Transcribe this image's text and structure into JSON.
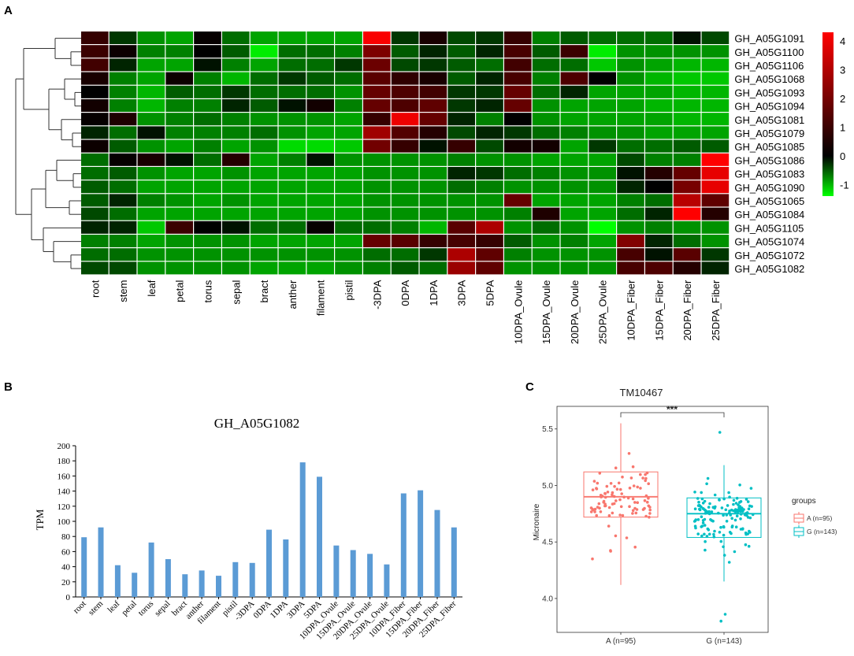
{
  "panels": {
    "a": "A",
    "b": "B",
    "c": "C"
  },
  "chart_data": [
    {
      "type": "heatmap",
      "panel": "A",
      "columns": [
        "root",
        "stem",
        "leaf",
        "petal",
        "torus",
        "sepal",
        "bract",
        "anther",
        "filament",
        "pistil",
        "-3DPA",
        "0DPA",
        "1DPA",
        "3DPA",
        "5DPA",
        "10DPA_Ovule",
        "15DPA_Ovule",
        "20DPA_Ovule",
        "25DPA_Ovule",
        "10DPA_Fiber",
        "15DPA_Fiber",
        "20DPA_Fiber",
        "25DPA_Fiber"
      ],
      "rows": [
        "GH_A05G1091",
        "GH_A05G1100",
        "GH_A05G1106",
        "GH_A05G1068",
        "GH_A05G1093",
        "GH_A05G1094",
        "GH_A05G1081",
        "GH_A05G1079",
        "GH_A05G1085",
        "GH_A05G1086",
        "GH_A05G1083",
        "GH_A05G1090",
        "GH_A05G1065",
        "GH_A05G1084",
        "GH_A05G1105",
        "GH_A05G1074",
        "GH_A05G1072",
        "GH_A05G1082"
      ],
      "values": [
        [
          0.9,
          -0.3,
          -0.8,
          -0.9,
          0.1,
          -0.6,
          -0.9,
          -0.9,
          -0.9,
          -0.9,
          4.2,
          -0.3,
          0.4,
          -0.4,
          -0.3,
          0.9,
          -0.7,
          -0.5,
          -0.6,
          -0.6,
          -0.6,
          -0.1,
          -0.4
        ],
        [
          1.0,
          0.2,
          -0.7,
          -0.7,
          0.0,
          -0.5,
          -1.3,
          -0.6,
          -0.6,
          -0.7,
          2.1,
          -0.5,
          -0.2,
          -0.5,
          -0.2,
          1.2,
          -0.5,
          1.0,
          -1.3,
          -0.8,
          -0.8,
          -0.8,
          -0.8
        ],
        [
          1.1,
          -0.2,
          -0.9,
          -0.9,
          -0.1,
          -0.7,
          -0.9,
          -0.6,
          -0.6,
          -0.3,
          1.8,
          -0.4,
          -0.3,
          -0.5,
          -0.6,
          1.1,
          -0.6,
          -0.6,
          -1.1,
          -0.8,
          -0.9,
          -1.0,
          -1.0
        ],
        [
          0.4,
          -0.7,
          -0.9,
          0.2,
          -0.7,
          -1.0,
          -0.6,
          -0.3,
          -0.5,
          -0.6,
          1.5,
          0.8,
          0.4,
          -0.5,
          -0.2,
          1.2,
          -0.7,
          1.3,
          0.0,
          -0.8,
          -1.0,
          -1.1,
          -1.1
        ],
        [
          0.0,
          -0.7,
          -1.0,
          -0.5,
          -0.6,
          -0.3,
          -0.6,
          -0.6,
          -0.6,
          -0.8,
          1.7,
          1.3,
          1.1,
          -0.3,
          -0.3,
          1.7,
          -0.6,
          -0.2,
          -0.9,
          -0.9,
          -0.9,
          -1.0,
          -1.0
        ],
        [
          0.3,
          -0.7,
          -1.0,
          -0.7,
          -0.7,
          -0.2,
          -0.5,
          -0.1,
          0.3,
          -0.7,
          1.7,
          1.3,
          1.6,
          -0.3,
          -0.2,
          1.7,
          -0.8,
          -0.9,
          -0.9,
          -0.9,
          -1.0,
          -1.0,
          -1.0
        ],
        [
          0.1,
          0.5,
          -0.8,
          -0.7,
          -0.6,
          -0.7,
          -0.8,
          -0.8,
          -0.8,
          -0.9,
          0.9,
          4.0,
          1.7,
          -0.2,
          -0.7,
          0.0,
          -0.8,
          -0.9,
          -0.9,
          -0.9,
          -0.9,
          -1.0,
          -1.0
        ],
        [
          -0.2,
          -0.6,
          -0.1,
          -0.7,
          -0.7,
          -0.7,
          -0.6,
          -0.8,
          -0.9,
          -0.9,
          2.7,
          1.4,
          0.6,
          -0.4,
          -0.2,
          -0.3,
          -0.6,
          -0.7,
          -0.8,
          -0.8,
          -0.9,
          -0.9,
          -0.9
        ],
        [
          0.2,
          -0.5,
          -0.8,
          -0.9,
          -0.7,
          -0.9,
          -0.8,
          -1.2,
          -1.2,
          -1.1,
          1.9,
          0.9,
          -0.1,
          0.9,
          -0.4,
          0.3,
          0.3,
          -0.9,
          -0.3,
          -0.6,
          -0.6,
          -0.5,
          -0.5
        ],
        [
          -0.6,
          0.1,
          0.4,
          -0.1,
          -0.6,
          0.6,
          -0.9,
          -0.7,
          -0.1,
          -0.8,
          -0.8,
          -0.8,
          -0.8,
          -0.7,
          -0.8,
          -0.8,
          -0.9,
          -0.9,
          -0.9,
          -0.4,
          -0.7,
          -0.7,
          4.3
        ],
        [
          -0.6,
          -0.5,
          -0.8,
          -0.9,
          -0.9,
          -0.8,
          -0.9,
          -0.9,
          -0.9,
          -0.9,
          -0.8,
          -0.8,
          -0.8,
          -0.2,
          -0.3,
          -0.6,
          -0.7,
          -0.8,
          -0.8,
          -0.1,
          0.6,
          1.7,
          3.9
        ],
        [
          -0.5,
          -0.6,
          -0.9,
          -0.9,
          -0.9,
          -0.9,
          -0.9,
          -0.9,
          -0.9,
          -0.9,
          -0.8,
          -0.8,
          -0.8,
          -0.6,
          -0.7,
          -0.8,
          -0.8,
          -0.8,
          -0.8,
          -0.2,
          0.0,
          2.0,
          3.9
        ],
        [
          -0.5,
          -0.2,
          -0.7,
          -0.8,
          -0.9,
          -0.8,
          -0.9,
          -0.9,
          -0.9,
          -0.9,
          -0.8,
          -0.8,
          -0.8,
          -0.8,
          -0.8,
          1.7,
          -0.9,
          -0.9,
          -0.9,
          -0.7,
          -0.6,
          3.1,
          1.6
        ],
        [
          -0.4,
          -0.6,
          -0.9,
          -0.9,
          -0.9,
          -0.9,
          -0.9,
          -0.9,
          -0.9,
          -0.9,
          -0.8,
          -0.8,
          -0.8,
          -0.8,
          -0.8,
          -0.7,
          0.5,
          -0.9,
          -0.9,
          -0.6,
          -0.2,
          4.3,
          0.6
        ],
        [
          -0.2,
          -0.2,
          -1.1,
          1.0,
          0.0,
          -0.1,
          -0.6,
          -0.6,
          0.1,
          -0.6,
          -0.6,
          -0.7,
          -1.0,
          1.5,
          2.9,
          -0.8,
          -0.6,
          -0.8,
          -1.4,
          -0.8,
          -0.7,
          -0.8,
          -0.8
        ],
        [
          -0.7,
          -0.7,
          -0.9,
          -0.8,
          -0.8,
          -0.8,
          -0.9,
          -0.9,
          -0.9,
          -0.9,
          1.7,
          1.5,
          0.9,
          1.2,
          0.9,
          -0.5,
          -0.8,
          -0.7,
          -0.9,
          2.2,
          -0.2,
          -0.6,
          -0.8
        ],
        [
          -0.6,
          -0.6,
          -0.8,
          -0.8,
          -0.8,
          -0.8,
          -0.8,
          -0.8,
          -0.8,
          -0.8,
          -0.6,
          -0.6,
          -0.3,
          2.9,
          1.6,
          -0.7,
          -0.8,
          -0.8,
          -0.8,
          1.2,
          -0.1,
          1.5,
          -0.3
        ],
        [
          -0.4,
          -0.4,
          -0.8,
          -0.8,
          -0.8,
          -0.8,
          -0.9,
          -0.9,
          -0.9,
          -0.8,
          -0.7,
          -0.5,
          -0.6,
          2.6,
          1.6,
          -0.8,
          -0.8,
          -0.8,
          -0.8,
          1.2,
          1.3,
          0.6,
          -0.2
        ]
      ],
      "colorbar": {
        "ticks": [
          4,
          3,
          2,
          1,
          0,
          -1
        ],
        "range": [
          -1.4,
          4.3
        ],
        "colors": {
          "low": "#00ff00",
          "mid": "#000000",
          "high": "#ff0000"
        }
      },
      "dendrogram": "row clustering tree (hierarchical)"
    },
    {
      "type": "bar",
      "panel": "B",
      "title": "GH_A05G1082",
      "ylabel": "TPM",
      "xlabel": "",
      "ylim": [
        0,
        200
      ],
      "yticks": [
        0,
        20,
        40,
        60,
        80,
        100,
        120,
        140,
        160,
        180,
        200
      ],
      "categories": [
        "root",
        "stem",
        "leaf",
        "petal",
        "torus",
        "sepal",
        "bract",
        "anther",
        "filament",
        "pistil",
        "-3DPA",
        "0DPA",
        "1DPA",
        "3DPA",
        "5DPA",
        "10DPA_Ovule",
        "15DPA_Ovule",
        "20DPA_Ovule",
        "25DPA_Ovule",
        "10DPA_Fiber",
        "15DPA_Fiber",
        "20DPA_Fiber",
        "25DPA_Fiber"
      ],
      "values": [
        79,
        92,
        42,
        32,
        72,
        50,
        30,
        35,
        28,
        46,
        45,
        89,
        76,
        178,
        159,
        68,
        62,
        57,
        43,
        137,
        141,
        115,
        92
      ],
      "bar_color": "#5b9bd5"
    },
    {
      "type": "box",
      "panel": "C",
      "title": "TM10467",
      "significance": "***",
      "ylabel": "Micronaire",
      "xlabel": "",
      "ylim": [
        3.7,
        5.7
      ],
      "yticks": [
        4.0,
        4.5,
        5.0,
        5.5
      ],
      "categories": [
        "A (n=95)",
        "G (n=143)"
      ],
      "legend": {
        "title": "groups",
        "items": [
          "A (n=95)",
          "G (n=143)"
        ],
        "position": "right"
      },
      "series": [
        {
          "name": "A (n=95)",
          "color": "#f8766d",
          "min": 4.12,
          "q1": 4.72,
          "median": 4.9,
          "q3": 5.12,
          "max": 5.55,
          "n": 95,
          "outliers": []
        },
        {
          "name": "G (n=143)",
          "color": "#00bfc4",
          "min": 4.15,
          "q1": 4.54,
          "median": 4.75,
          "q3": 4.89,
          "max": 5.18,
          "n": 143,
          "outliers": [
            3.8,
            3.86,
            5.47
          ]
        }
      ]
    }
  ]
}
